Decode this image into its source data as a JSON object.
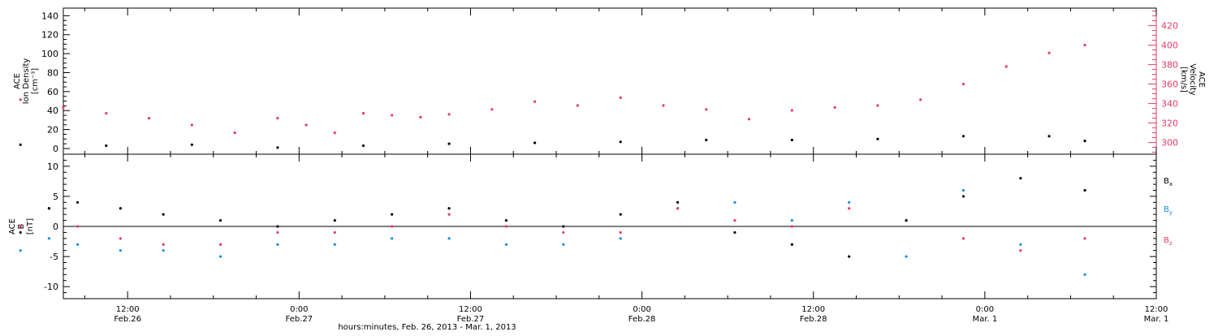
{
  "chart_data": [
    {
      "type": "scatter",
      "panel": "top",
      "ylabel_left": [
        "ACE",
        "Ion Density",
        "[cm⁻³]"
      ],
      "ylabel_right": [
        "ACE",
        "Velocity",
        "[km/s]"
      ],
      "ylim_left": [
        -6,
        148
      ],
      "yticks_left": [
        "0",
        "20",
        "40",
        "60",
        "80",
        "100",
        "120",
        "140"
      ],
      "yticks_left_values": [
        0,
        20,
        40,
        60,
        80,
        100,
        120,
        140
      ],
      "ylim_right": [
        288,
        438
      ],
      "yticks_right": [
        "300",
        "320",
        "340",
        "360",
        "380",
        "400",
        "420"
      ],
      "yticks_right_values": [
        300,
        320,
        340,
        360,
        380,
        400,
        420
      ],
      "series": [
        {
          "color": "#000000",
          "axis": "left",
          "x_hours": [
            0,
            6,
            12,
            18,
            24,
            30,
            36,
            42,
            48,
            54,
            60,
            66,
            72,
            74.5
          ],
          "values": [
            4,
            3,
            4,
            1,
            3,
            5,
            6,
            7,
            9,
            9,
            10,
            13,
            13,
            8
          ]
        },
        {
          "color": "#e83a63",
          "axis": "right",
          "x_hours": [
            0,
            3,
            6,
            9,
            12,
            15,
            18,
            20,
            22,
            24,
            26,
            28,
            30,
            33,
            36,
            39,
            42,
            45,
            48,
            51,
            54,
            57,
            60,
            63,
            66,
            69,
            72,
            74.5
          ],
          "values": [
            344,
            336,
            330,
            325,
            318,
            310,
            325,
            318,
            310,
            330,
            328,
            326,
            329,
            334,
            342,
            338,
            346,
            338,
            334,
            324,
            333,
            336,
            338,
            344,
            360,
            378,
            392,
            400
          ]
        }
      ]
    },
    {
      "type": "scatter",
      "panel": "bottom",
      "ylabel": [
        "ACE",
        "B",
        "[nT]"
      ],
      "ylim": [
        -12,
        12
      ],
      "yticks": [
        "-10",
        "-5",
        "0",
        "5",
        "10"
      ],
      "yticks_values": [
        -10,
        -5,
        0,
        5,
        10
      ],
      "series": [
        {
          "name": "Bx",
          "color": "#000000",
          "x_hours": [
            0,
            2,
            4,
            7,
            10,
            14,
            18,
            22,
            26,
            30,
            34,
            38,
            42,
            46,
            50,
            54,
            58,
            62,
            66,
            70,
            74.5
          ],
          "values": [
            -1,
            3,
            4,
            3,
            2,
            1,
            0,
            1,
            2,
            3,
            1,
            0,
            2,
            4,
            -1,
            -3,
            -5,
            1,
            5,
            8,
            6
          ]
        },
        {
          "name": "By",
          "color": "#1a8be0",
          "x_hours": [
            0,
            2,
            4,
            7,
            10,
            14,
            18,
            22,
            26,
            30,
            34,
            38,
            42,
            46,
            50,
            54,
            58,
            62,
            66,
            70,
            74.5
          ],
          "values": [
            -4,
            -2,
            -3,
            -4,
            -4,
            -5,
            -3,
            -3,
            -2,
            -2,
            -3,
            -3,
            -2,
            3,
            4,
            1,
            4,
            -5,
            6,
            -3,
            -8
          ]
        },
        {
          "name": "Bz",
          "color": "#e83a63",
          "x_hours": [
            0,
            2,
            4,
            7,
            10,
            14,
            18,
            22,
            26,
            30,
            34,
            38,
            42,
            46,
            50,
            54,
            58,
            62,
            66,
            70,
            74.5
          ],
          "values": [
            0,
            3,
            0,
            -2,
            -3,
            -3,
            -1,
            -1,
            0,
            2,
            0,
            -1,
            -1,
            3,
            1,
            0,
            3,
            1,
            -2,
            -4,
            -2
          ]
        }
      ]
    }
  ],
  "xaxis": {
    "label": "hours:minutes, Feb. 26, 2013 - Mar.  1, 2013",
    "ticks": [
      {
        "hours": 7.5,
        "time": "12:00",
        "date": "Feb.26"
      },
      {
        "hours": 19.5,
        "time": "0:00",
        "date": "Feb.27"
      },
      {
        "hours": 31.5,
        "time": "12:00",
        "date": "Feb.27"
      },
      {
        "hours": 43.5,
        "time": "0:00",
        "date": "Feb.28"
      },
      {
        "hours": 55.5,
        "time": "12:00",
        "date": "Feb.28"
      },
      {
        "hours": 67.5,
        "time": "0:00",
        "date": "Mar.  1"
      },
      {
        "hours": 79.5,
        "time": "12:00",
        "date": "Mar.  1"
      }
    ],
    "xlim": [
      3,
      79.5
    ]
  },
  "legend": {
    "bx": {
      "main": "B",
      "sub": "x"
    },
    "by": {
      "main": "B",
      "sub": "y"
    },
    "bz": {
      "main": "B",
      "sub": "z"
    }
  },
  "colors": {
    "black": "#000000",
    "pink": "#e83a63",
    "blue": "#1a8be0"
  }
}
